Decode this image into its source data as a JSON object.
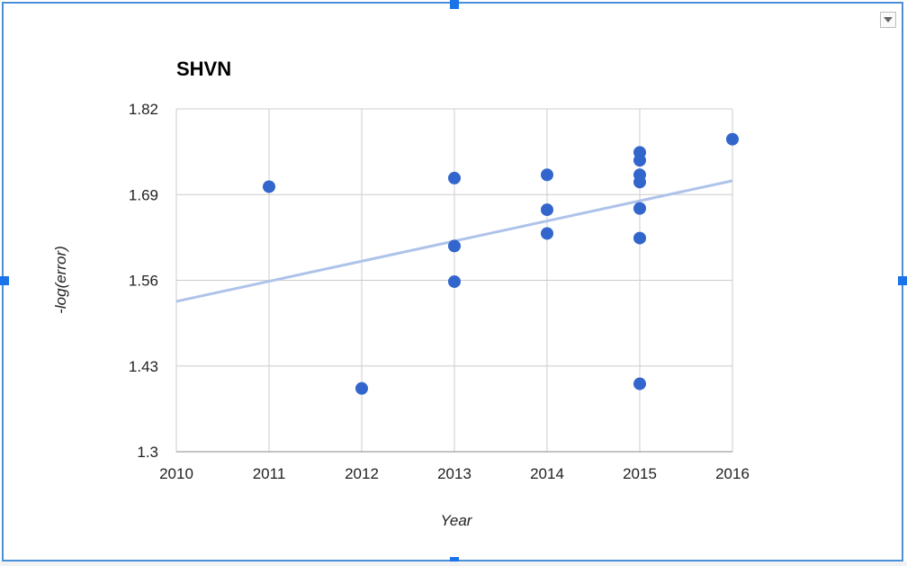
{
  "chart_data": {
    "type": "scatter",
    "title": "SHVN",
    "xlabel": "Year",
    "ylabel": "-log(error)",
    "xlim": [
      2010,
      2016
    ],
    "ylim": [
      1.3,
      1.82
    ],
    "x_ticks": [
      "2010",
      "2011",
      "2012",
      "2013",
      "2014",
      "2015",
      "2016"
    ],
    "y_ticks": [
      "1.3",
      "1.43",
      "1.56",
      "1.69",
      "1.82"
    ],
    "grid": true,
    "legend": "none",
    "series": [
      {
        "color": "#3366cc",
        "points": [
          {
            "x": 2011,
            "y": 1.702
          },
          {
            "x": 2012,
            "y": 1.396
          },
          {
            "x": 2013,
            "y": 1.715
          },
          {
            "x": 2013,
            "y": 1.612
          },
          {
            "x": 2013,
            "y": 1.558
          },
          {
            "x": 2014,
            "y": 1.72
          },
          {
            "x": 2014,
            "y": 1.667
          },
          {
            "x": 2014,
            "y": 1.631
          },
          {
            "x": 2015,
            "y": 1.754
          },
          {
            "x": 2015,
            "y": 1.742
          },
          {
            "x": 2015,
            "y": 1.72
          },
          {
            "x": 2015,
            "y": 1.709
          },
          {
            "x": 2015,
            "y": 1.669
          },
          {
            "x": 2015,
            "y": 1.624
          },
          {
            "x": 2015,
            "y": 1.403
          },
          {
            "x": 2016,
            "y": 1.774
          }
        ]
      }
    ],
    "trendline": {
      "color": "#aec3ea",
      "x": [
        2010,
        2016
      ],
      "y": [
        1.528,
        1.711
      ]
    }
  }
}
